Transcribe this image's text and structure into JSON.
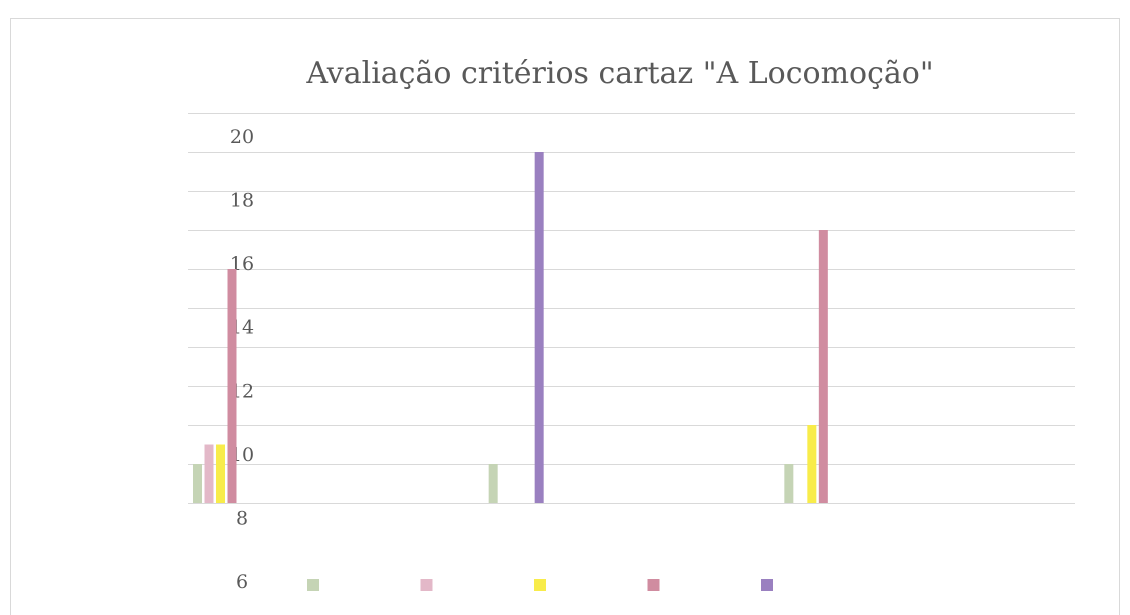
{
  "chart_data": {
    "type": "bar",
    "title": "Avaliação critérios cartaz \"A Locomoção\"",
    "categories": [
      null,
      null,
      null
    ],
    "series": [
      {
        "color": "#c5d4b5",
        "axis": "y2",
        "values": [
          1,
          1,
          1
        ]
      },
      {
        "color": "#e3b8c8",
        "axis": "y2",
        "values": [
          1.5,
          null,
          null
        ]
      },
      {
        "color": "#f8ec4a",
        "axis": "y2",
        "values": [
          1.5,
          null,
          2
        ]
      },
      {
        "color": "#d08ca0",
        "axis": "y2",
        "values": [
          6,
          null,
          7
        ]
      },
      {
        "color": "#9a80c0",
        "axis": "y2",
        "values": [
          null,
          9,
          null
        ]
      }
    ],
    "ylim": [
      6,
      20
    ],
    "yticks": [
      6,
      8,
      10,
      12,
      14,
      16,
      18,
      20
    ],
    "y2lim": [
      0,
      10
    ],
    "y2ticks": [
      0,
      1,
      2,
      3,
      4,
      5,
      6,
      7,
      8,
      9,
      10
    ],
    "grid": true,
    "legend": "bottom"
  }
}
